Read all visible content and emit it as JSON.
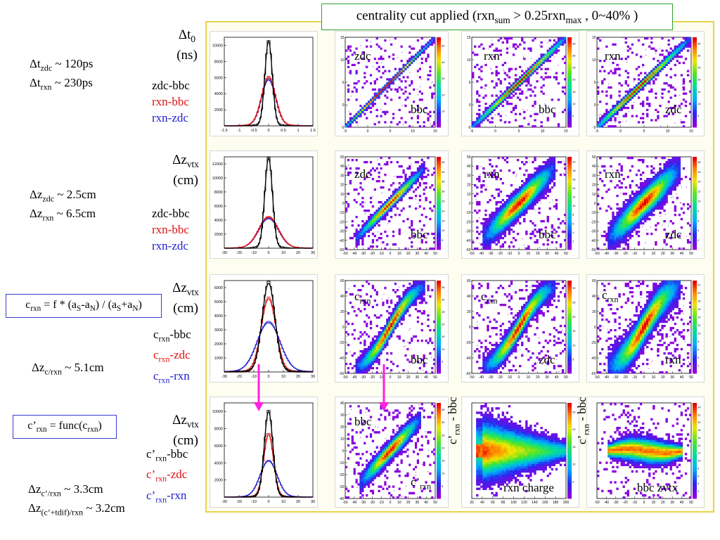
{
  "header": {
    "title_main": "centrality cut applied (rxn",
    "title_sub1": "sum",
    "title_mid": " > 0.25rxn",
    "title_sub2": "max",
    "title_end": " , 0~40% )"
  },
  "rows": [
    {
      "label_main": "Δt",
      "label_sub": "0",
      "label_unit": "(ns)",
      "notes": [
        {
          "pre": "Δt",
          "sub": "zdc",
          "post": " ~ 120ps"
        },
        {
          "pre": "Δt",
          "sub": "rxn",
          "post": " ~ 230ps"
        }
      ],
      "legend": [
        {
          "pre": "zdc-bbc",
          "sub": "",
          "post": ""
        },
        {
          "pre": "rxn-bbc",
          "sub": "",
          "post": ""
        },
        {
          "pre": "rxn-zdc",
          "sub": "",
          "post": ""
        }
      ],
      "scatter_labels": [
        {
          "top": "zdc",
          "bottom": "bbc"
        },
        {
          "top": "rxn",
          "bottom": "bbc"
        },
        {
          "top": "rxn",
          "bottom": "zdc"
        }
      ]
    },
    {
      "label_main": "Δz",
      "label_sub": "vtx",
      "label_unit": "(cm)",
      "notes": [
        {
          "pre": "Δz",
          "sub": "zdc",
          "post": " ~ 2.5cm"
        },
        {
          "pre": "Δz",
          "sub": "rxn",
          "post": " ~ 6.5cm"
        }
      ],
      "legend": [
        {
          "pre": "zdc-bbc",
          "sub": "",
          "post": ""
        },
        {
          "pre": "rxn-bbc",
          "sub": "",
          "post": ""
        },
        {
          "pre": "rxn-zdc",
          "sub": "",
          "post": ""
        }
      ],
      "scatter_labels": [
        {
          "top": "zdc",
          "bottom": "bbc"
        },
        {
          "top": "rxn",
          "bottom": "bbc"
        },
        {
          "top": "rxn",
          "bottom": "zdc"
        }
      ]
    },
    {
      "label_main": "Δz",
      "label_sub": "vtx",
      "label_unit": "(cm)",
      "notes": [
        {
          "pre": "Δz",
          "sub": "c/rxn",
          "post": " ~ 5.1cm"
        }
      ],
      "legend": [
        {
          "pre": "c",
          "sub": "rxn",
          "post": "-bbc"
        },
        {
          "pre": "c",
          "sub": "rxn",
          "post": "-zdc"
        },
        {
          "pre": "c",
          "sub": "rxn",
          "post": "-rxn"
        }
      ],
      "scatter_labels": [
        {
          "top_pre": "c",
          "top_sub": "rxn",
          "bottom": "bbc"
        },
        {
          "top_pre": "c",
          "top_sub": "rxn",
          "bottom": "zdc"
        },
        {
          "top_pre": "c",
          "top_sub": "rxn",
          "bottom": "rxn"
        }
      ]
    },
    {
      "label_main": "Δz",
      "label_sub": "vtx",
      "label_unit": "(cm)",
      "notes": [
        {
          "pre": "Δz",
          "sub": "c’/rxn",
          "post": " ~ 3.3cm"
        },
        {
          "pre": "Δz",
          "sub": "(c’+tdif)/rxn",
          "post": " ~ 3.2cm"
        }
      ],
      "legend": [
        {
          "pre": "c’",
          "sub": "rxn",
          "post": "-bbc"
        },
        {
          "pre": "c’",
          "sub": "rxn",
          "post": "-zdc"
        },
        {
          "pre": "c’",
          "sub": "rxn",
          "post": "-rxn"
        }
      ],
      "scatter_labels": [
        {
          "top": "bbc",
          "bottom_pre": "c’",
          "bottom_sub": "rxn"
        },
        {
          "vert_pre": "c’",
          "vert_sub": "rxn",
          "vert_post": " - bbc",
          "bottom": "rxn charge"
        },
        {
          "vert_pre": "c’",
          "vert_sub": "rxn",
          "vert_post": " - bbc",
          "bottom": "bbc zvtx"
        }
      ]
    }
  ],
  "formula_boxes": [
    {
      "pre": "c",
      "sub": "rxn",
      "mid": " = f * (a",
      "s1": "S",
      "m2": "-a",
      "s2": "N",
      "m3": ") / (a",
      "s3": "S",
      "m4": "+a",
      "s4": "N",
      "end": ")"
    },
    {
      "pre": "c’",
      "sub": "rxn",
      "end": " = func(c",
      "sub2": "rxn",
      "end2": ")"
    }
  ],
  "colors": {
    "hist_black": "#000000",
    "hist_red": "#e01010",
    "hist_blue": "#2020d0",
    "arrow": "#ff20e0",
    "frame": "#e8d24a"
  },
  "chart_data": [
    {
      "type": "line",
      "title": "",
      "xlim": [
        -1.5,
        1.5
      ],
      "ylim": [
        0,
        11000
      ],
      "x_ticks": [
        "-1.5",
        "-1",
        "-0.5",
        "0",
        "0.5",
        "1",
        "1.5"
      ],
      "y_ticks": [
        "2000",
        "4000",
        "6000",
        "8000",
        "10000"
      ],
      "series": [
        {
          "name": "zdc-bbc",
          "color": "#000000",
          "mean": 0,
          "sigma": 0.12,
          "peak": 10500
        },
        {
          "name": "rxn-bbc",
          "color": "#e01010",
          "mean": 0,
          "sigma": 0.23,
          "peak": 6000
        },
        {
          "name": "rxn-zdc",
          "color": "#2020d0",
          "mean": 0,
          "sigma": 0.23,
          "peak": 5700
        }
      ]
    },
    {
      "type": "line",
      "title": "",
      "xlim": [
        -30,
        30
      ],
      "ylim": [
        0,
        13000
      ],
      "x_ticks": [
        "-30",
        "-20",
        "-10",
        "0",
        "10",
        "20",
        "30"
      ],
      "y_ticks": [
        "2000",
        "4000",
        "6000",
        "8000",
        "10000",
        "12000"
      ],
      "series": [
        {
          "name": "zdc-bbc",
          "color": "#000000",
          "mean": 0,
          "sigma": 2.5,
          "peak": 12800
        },
        {
          "name": "rxn-bbc",
          "color": "#e01010",
          "mean": 0,
          "sigma": 6.5,
          "peak": 4400
        },
        {
          "name": "rxn-zdc",
          "color": "#2020d0",
          "mean": 0,
          "sigma": 6.5,
          "peak": 4200
        }
      ]
    },
    {
      "type": "line",
      "title": "",
      "xlim": [
        -30,
        30
      ],
      "ylim": [
        0,
        6500
      ],
      "x_ticks": [
        "-30",
        "-20",
        "-10",
        "0",
        "10",
        "20",
        "30"
      ],
      "y_ticks": [
        "1000",
        "2000",
        "3000",
        "4000",
        "5000",
        "6000"
      ],
      "series": [
        {
          "name": "c_rxn-bbc",
          "color": "#000000",
          "mean": 0,
          "sigma": 4.2,
          "peak": 6300
        },
        {
          "name": "c_rxn-zdc",
          "color": "#e01010",
          "mean": 0,
          "sigma": 4.8,
          "peak": 5200
        },
        {
          "name": "c_rxn-rxn",
          "color": "#2020d0",
          "mean": 0,
          "sigma": 7.5,
          "peak": 3500
        }
      ]
    },
    {
      "type": "line",
      "title": "",
      "xlim": [
        -30,
        30
      ],
      "ylim": [
        0,
        11000
      ],
      "x_ticks": [
        "-30",
        "-20",
        "-10",
        "0",
        "10",
        "20",
        "30"
      ],
      "y_ticks": [
        "2000",
        "4000",
        "6000",
        "8000",
        "10000"
      ],
      "series": [
        {
          "name": "c'_rxn-bbc",
          "color": "#000000",
          "mean": 0,
          "sigma": 2.8,
          "peak": 10000
        },
        {
          "name": "c'_rxn-zdc",
          "color": "#e01010",
          "mean": 0,
          "sigma": 3.2,
          "peak": 7300
        },
        {
          "name": "c'_rxn-rxn",
          "color": "#2020d0",
          "mean": 0,
          "sigma": 5.5,
          "peak": 4200
        }
      ]
    },
    {
      "type": "heatmap",
      "panels": [
        {
          "xlim": [
            -5,
            15
          ],
          "ylim": [
            -5,
            15
          ],
          "x_ticks": [
            "-5",
            "0",
            "5",
            "10",
            "15"
          ],
          "y_ticks": [
            "-5",
            "0",
            "5",
            "10",
            "15"
          ],
          "z_ticks": [
            "10",
            "20",
            "30",
            "40",
            "50"
          ],
          "shape": "diag",
          "x0": 4,
          "y0": 4,
          "spread": 0.25,
          "extent": 11
        },
        {
          "xlim": [
            -5,
            15
          ],
          "ylim": [
            -5,
            15
          ],
          "x_ticks": [
            "-5",
            "0",
            "5",
            "10",
            "15"
          ],
          "y_ticks": [
            "-5",
            "0",
            "5",
            "10",
            "15"
          ],
          "z_ticks": [
            "5",
            "10",
            "15",
            "20",
            "25",
            "30",
            "35"
          ],
          "shape": "diag",
          "x0": 5,
          "y0": 5,
          "spread": 0.4,
          "extent": 11
        },
        {
          "xlim": [
            -5,
            15
          ],
          "ylim": [
            -5,
            15
          ],
          "x_ticks": [
            "-5",
            "0",
            "5",
            "10",
            "15"
          ],
          "y_ticks": [
            "-5",
            "0",
            "5",
            "10",
            "15"
          ],
          "z_ticks": [
            "5",
            "10",
            "15",
            "20",
            "25",
            "30",
            "35"
          ],
          "shape": "diag",
          "x0": 4,
          "y0": 4,
          "spread": 0.45,
          "extent": 11
        },
        {
          "xlim": [
            -50,
            50
          ],
          "ylim": [
            -50,
            50
          ],
          "x_ticks": [
            "-50",
            "-40",
            "-30",
            "-20",
            "-10",
            "0",
            "10",
            "20",
            "30",
            "40",
            "50"
          ],
          "y_ticks": [
            "-50",
            "-40",
            "-30",
            "-20",
            "-10",
            "0",
            "10",
            "20",
            "30",
            "40",
            "50"
          ],
          "z_ticks": [
            "5",
            "10",
            "15",
            "20",
            "25",
            "30",
            "35",
            "40",
            "45"
          ],
          "shape": "diag",
          "x0": 0,
          "y0": 0,
          "spread": 3,
          "extent": 36
        },
        {
          "xlim": [
            -50,
            50
          ],
          "ylim": [
            -50,
            50
          ],
          "x_ticks": [
            "-50",
            "-40",
            "-30",
            "-20",
            "-10",
            "0",
            "10",
            "20",
            "30",
            "40",
            "50"
          ],
          "y_ticks": [
            "-50",
            "-40",
            "-30",
            "-20",
            "-10",
            "0",
            "10",
            "20",
            "30",
            "40",
            "50"
          ],
          "z_ticks": [
            "2",
            "4",
            "6",
            "8",
            "10",
            "12",
            "14",
            "16",
            "18",
            "20"
          ],
          "shape": "diag",
          "x0": 0,
          "y0": 0,
          "spread": 7,
          "extent": 36
        },
        {
          "xlim": [
            -50,
            50
          ],
          "ylim": [
            -50,
            50
          ],
          "x_ticks": [
            "-50",
            "-40",
            "-30",
            "-20",
            "-10",
            "0",
            "10",
            "20",
            "30",
            "40",
            "50"
          ],
          "y_ticks": [
            "-50",
            "-40",
            "-30",
            "-20",
            "-10",
            "0",
            "10",
            "20",
            "30",
            "40",
            "50"
          ],
          "z_ticks": [
            "2",
            "4",
            "6",
            "8",
            "10",
            "12",
            "14",
            "16",
            "18"
          ],
          "shape": "diag",
          "x0": 0,
          "y0": 0,
          "spread": 8,
          "extent": 36
        },
        {
          "xlim": [
            -50,
            50
          ],
          "ylim": [
            -60,
            60
          ],
          "x_ticks": [
            "-50",
            "-40",
            "-30",
            "-20",
            "-10",
            "0",
            "10",
            "20",
            "30",
            "40",
            "50"
          ],
          "y_ticks": [
            "-60",
            "-40",
            "-20",
            "0",
            "20",
            "40",
            "60"
          ],
          "z_ticks": [
            "5",
            "10",
            "15",
            "20",
            "25",
            "30",
            "35"
          ],
          "shape": "s",
          "x0": 0,
          "y0": 0,
          "spread": 5,
          "extent": 36
        },
        {
          "xlim": [
            -50,
            50
          ],
          "ylim": [
            -60,
            60
          ],
          "x_ticks": [
            "-50",
            "-40",
            "-30",
            "-20",
            "-10",
            "0",
            "10",
            "20",
            "30",
            "40",
            "50"
          ],
          "y_ticks": [
            "-60",
            "-40",
            "-20",
            "0",
            "20",
            "40",
            "60"
          ],
          "z_ticks": [
            "5",
            "10",
            "15",
            "20",
            "25",
            "30"
          ],
          "shape": "s",
          "x0": 0,
          "y0": 0,
          "spread": 6,
          "extent": 36
        },
        {
          "xlim": [
            -50,
            50
          ],
          "ylim": [
            -60,
            60
          ],
          "x_ticks": [
            "-50",
            "-40",
            "-30",
            "-20",
            "-10",
            "0",
            "10",
            "20",
            "30",
            "40",
            "50"
          ],
          "y_ticks": [
            "-60",
            "-40",
            "-20",
            "0",
            "20",
            "40",
            "60"
          ],
          "z_ticks": [
            "2",
            "4",
            "6",
            "8",
            "10",
            "12",
            "14",
            "16",
            "18",
            "20",
            "22"
          ],
          "shape": "s",
          "x0": 0,
          "y0": 0,
          "spread": 9,
          "extent": 36
        },
        {
          "xlim": [
            -50,
            50
          ],
          "ylim": [
            -40,
            40
          ],
          "x_ticks": [
            "-50",
            "-40",
            "-30",
            "-20",
            "-10",
            "0",
            "10",
            "20",
            "30",
            "40",
            "50"
          ],
          "y_ticks": [
            "-40",
            "-30",
            "-20",
            "-10",
            "0",
            "10",
            "20",
            "30",
            "40"
          ],
          "z_ticks": [
            "5",
            "10",
            "15",
            "20",
            "25",
            "30",
            "35"
          ],
          "shape": "diag",
          "x0": 0,
          "y0": 0,
          "spread": 4,
          "extent": 32
        },
        {
          "xlim": [
            20,
            200
          ],
          "ylim": [
            -50,
            50
          ],
          "x_ticks": [
            "20",
            "40",
            "60",
            "80",
            "100",
            "120",
            "140",
            "160",
            "180",
            "200"
          ],
          "y_ticks": [],
          "z_ticks": [
            "5",
            "10",
            "15",
            "20",
            "25"
          ],
          "shape": "fan",
          "x0": 30,
          "y0": 0,
          "spread": 1,
          "extent": 1
        },
        {
          "xlim": [
            -50,
            50
          ],
          "ylim": [
            -50,
            50
          ],
          "x_ticks": [
            "-50",
            "-40",
            "-30",
            "-20",
            "-10",
            "0",
            "10",
            "20",
            "30",
            "40",
            "50"
          ],
          "y_ticks": [],
          "z_ticks": [
            "2",
            "4",
            "6",
            "8",
            "10",
            "12",
            "14",
            "16",
            "18",
            "20",
            "22",
            "24"
          ],
          "shape": "band",
          "x0": 0,
          "y0": 0,
          "spread": 1,
          "extent": 1
        }
      ]
    }
  ]
}
